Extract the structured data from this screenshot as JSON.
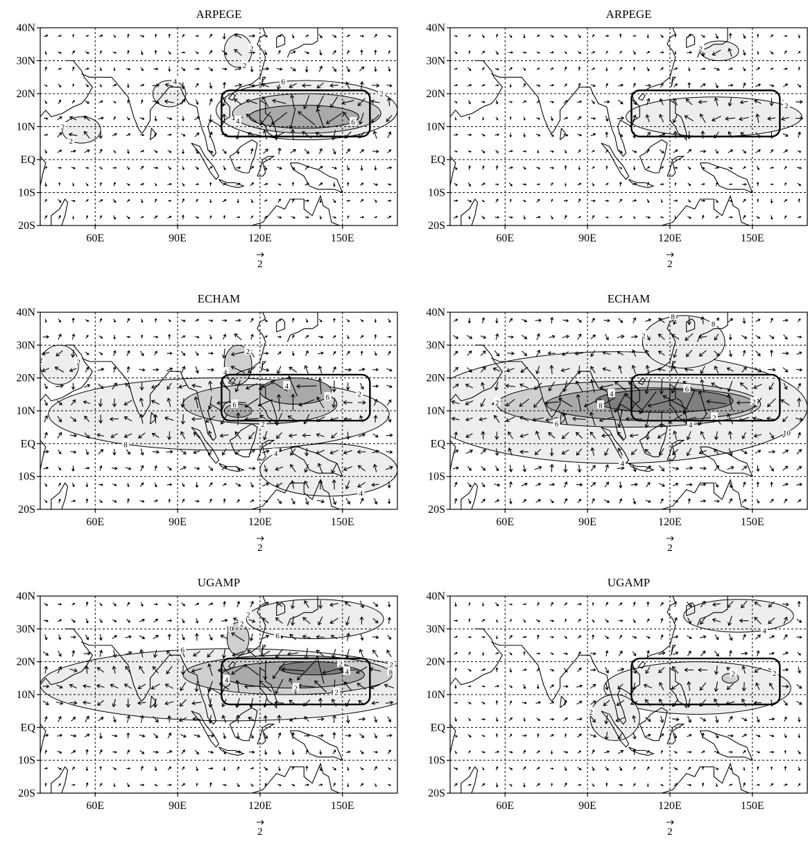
{
  "figure": {
    "columns": 2,
    "lat_ticks": [
      "40N",
      "30N",
      "20N",
      "10N",
      "EQ",
      "10S",
      "20S"
    ],
    "lon_ticks": [
      "60E",
      "90E",
      "120E",
      "150E"
    ],
    "vector_label": "2",
    "colors": {
      "shade_light": "#ededed",
      "shade_mid": "#cfcfcf",
      "shade_dark": "#a9a9a9",
      "shade_darkest": "#7f7f7f",
      "line": "#000000",
      "grid": "#000000"
    },
    "panels": [
      {
        "title": "ARPEGE",
        "contour_labels": [
          "2",
          "2",
          "2",
          "4",
          "4",
          "6",
          "6",
          "2",
          "2"
        ],
        "blobs": [
          {
            "level": 1,
            "cx": 137,
            "cy": 15,
            "rx": 33,
            "ry": 9
          },
          {
            "level": 1,
            "cx": 55,
            "cy": 9,
            "rx": 7,
            "ry": 4
          },
          {
            "level": 1,
            "cx": 112,
            "cy": 33,
            "rx": 5,
            "ry": 5
          },
          {
            "level": 1,
            "cx": 87,
            "cy": 20,
            "rx": 6,
            "ry": 4
          },
          {
            "level": 2,
            "cx": 137,
            "cy": 14,
            "rx": 27,
            "ry": 6
          },
          {
            "level": 3,
            "cx": 136,
            "cy": 13,
            "rx": 20,
            "ry": 3.5
          }
        ]
      },
      {
        "title": "ARPEGE",
        "contour_labels": [
          "2",
          "2"
        ],
        "blobs": [
          {
            "level": 1,
            "cx": 136,
            "cy": 13,
            "rx": 32,
            "ry": 6
          },
          {
            "level": 1,
            "cx": 138,
            "cy": 33,
            "rx": 7,
            "ry": 3
          }
        ]
      },
      {
        "title": "ECHAM",
        "contour_labels": [
          "2",
          "2",
          "4",
          "4",
          "4",
          "6",
          "6",
          "8",
          "2",
          "4",
          "2",
          "2"
        ],
        "blobs": [
          {
            "level": 1,
            "cx": 105,
            "cy": 9,
            "rx": 62,
            "ry": 11
          },
          {
            "level": 1,
            "cx": 47,
            "cy": 24,
            "rx": 7,
            "ry": 6
          },
          {
            "level": 1,
            "cx": 145,
            "cy": -8,
            "rx": 25,
            "ry": 8
          },
          {
            "level": 2,
            "cx": 120,
            "cy": 12,
            "rx": 28,
            "ry": 6
          },
          {
            "level": 2,
            "cx": 112,
            "cy": 24,
            "rx": 5,
            "ry": 6
          },
          {
            "level": 3,
            "cx": 133,
            "cy": 16,
            "rx": 13,
            "ry": 4
          },
          {
            "level": 3,
            "cx": 112,
            "cy": 10,
            "rx": 5,
            "ry": 2
          }
        ]
      },
      {
        "title": "ECHAM",
        "contour_labels": [
          "2",
          "2",
          "4",
          "6",
          "8",
          "10",
          "8",
          "6",
          "2",
          "4",
          "4",
          "8",
          "2",
          "2"
        ],
        "blobs": [
          {
            "level": 1,
            "cx": 100,
            "cy": 11,
            "rx": 70,
            "ry": 17
          },
          {
            "level": 1,
            "cx": 125,
            "cy": 31,
            "rx": 15,
            "ry": 8
          },
          {
            "level": 2,
            "cx": 105,
            "cy": 12,
            "rx": 48,
            "ry": 7
          },
          {
            "level": 3,
            "cx": 113,
            "cy": 12,
            "rx": 38,
            "ry": 5
          },
          {
            "level": 4,
            "cx": 118,
            "cy": 13,
            "rx": 25,
            "ry": 3.5
          }
        ]
      },
      {
        "title": "UGAMP",
        "contour_labels": [
          "2",
          "2",
          "2",
          "2",
          "4",
          "4",
          "6",
          "6",
          "8",
          "10",
          "2",
          "2"
        ],
        "blobs": [
          {
            "level": 1,
            "cx": 110,
            "cy": 13,
            "rx": 70,
            "ry": 11
          },
          {
            "level": 1,
            "cx": 140,
            "cy": 33,
            "rx": 25,
            "ry": 6
          },
          {
            "level": 2,
            "cx": 130,
            "cy": 16,
            "rx": 38,
            "ry": 6
          },
          {
            "level": 2,
            "cx": 112,
            "cy": 27,
            "rx": 4,
            "ry": 5
          },
          {
            "level": 3,
            "cx": 132,
            "cy": 16,
            "rx": 26,
            "ry": 4
          },
          {
            "level": 4,
            "cx": 140,
            "cy": 18,
            "rx": 13,
            "ry": 2
          }
        ]
      },
      {
        "title": "UGAMP",
        "contour_labels": [
          "2",
          "2",
          "4",
          "2"
        ],
        "blobs": [
          {
            "level": 1,
            "cx": 130,
            "cy": 12,
            "rx": 34,
            "ry": 8
          },
          {
            "level": 1,
            "cx": 100,
            "cy": 3,
            "rx": 9,
            "ry": 7
          },
          {
            "level": 1,
            "cx": 145,
            "cy": 34,
            "rx": 20,
            "ry": 5
          },
          {
            "level": 2,
            "cx": 142,
            "cy": 15,
            "rx": 3,
            "ry": 1.5
          }
        ]
      }
    ]
  }
}
